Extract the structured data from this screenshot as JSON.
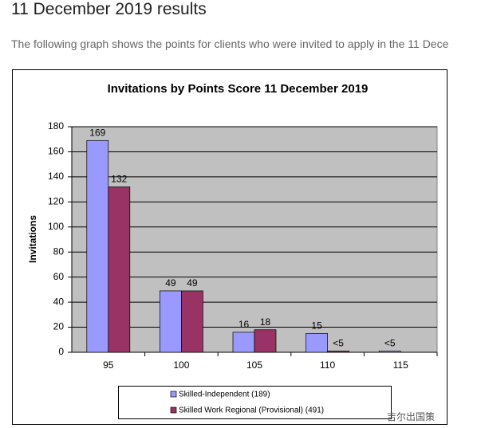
{
  "header": {
    "title": "11 December 2019 results",
    "intro": "The following graph shows the points for clients who were invited to apply in the 11 Dece"
  },
  "chart_data": {
    "type": "bar",
    "title": "Invitations by Points Score 11 December 2019",
    "y_label": "Invitations",
    "categories": [
      "95",
      "100",
      "105",
      "110",
      "115"
    ],
    "series": [
      {
        "name": "Skilled-Independent (189)",
        "color": "#9999ff",
        "values": [
          169,
          49,
          16,
          15,
          1
        ],
        "value_labels": [
          "169",
          "49",
          "16",
          "15",
          "<5"
        ]
      },
      {
        "name": "Skilled Work Regional (Provisional) (491)",
        "color": "#993366",
        "values": [
          132,
          49,
          18,
          1,
          null
        ],
        "value_labels": [
          "132",
          "49",
          "18",
          "<5",
          null
        ]
      }
    ],
    "ylim": [
      0,
      180
    ],
    "yticks": [
      0,
      20,
      40,
      60,
      80,
      100,
      120,
      140,
      160,
      180
    ],
    "grid": true,
    "plot_background": "#c0c0c0"
  },
  "watermark": "吉尔出国策"
}
